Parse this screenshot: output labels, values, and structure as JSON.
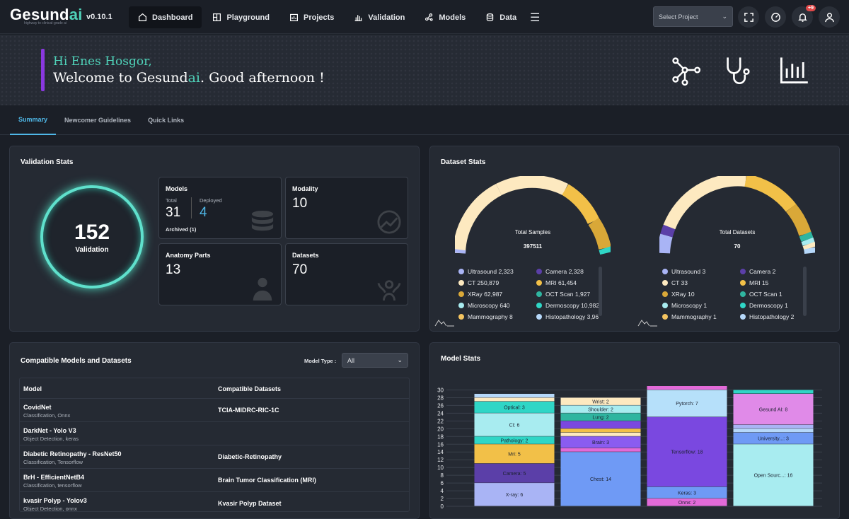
{
  "header": {
    "logo_main": "Gesund",
    "logo_ai": "ai",
    "tagline": "highway to clinical-grade ai",
    "version": "v0.10.1",
    "nav": [
      {
        "label": "Dashboard"
      },
      {
        "label": "Playground"
      },
      {
        "label": "Projects"
      },
      {
        "label": "Validation"
      },
      {
        "label": "Models"
      },
      {
        "label": "Data"
      }
    ],
    "select_project": "Select Project",
    "notifications": "+9"
  },
  "hero": {
    "greeting": "Hi Enes Hosgor,",
    "welcome_pre": "Welcome to ",
    "welcome_logo_main": "Gesund",
    "welcome_logo_ai": "ai",
    "welcome_post": ". Good afternoon !"
  },
  "tabs": [
    {
      "label": "Summary"
    },
    {
      "label": "Newcomer Guidelines"
    },
    {
      "label": "Quick Links"
    }
  ],
  "validation_stats": {
    "title": "Validation Stats",
    "count": "152",
    "count_label": "Validation",
    "models": {
      "title": "Models",
      "total_label": "Total",
      "total": "31",
      "deployed_label": "Deployed",
      "deployed": "4",
      "archived": "Archived (1)"
    },
    "modality": {
      "title": "Modality",
      "value": "10"
    },
    "anatomy": {
      "title": "Anatomy Parts",
      "value": "13"
    },
    "datasets": {
      "title": "Datasets",
      "value": "70"
    }
  },
  "dataset_stats": {
    "title": "Dataset Stats",
    "samples": {
      "label": "Total Samples",
      "value": "397511",
      "items": [
        {
          "text": "Ultrasound 2,323",
          "color": "#a9b4f5"
        },
        {
          "text": "Camera 2,328",
          "color": "#5b3fa8"
        },
        {
          "text": "CT 250,879",
          "color": "#fde9c0"
        },
        {
          "text": "MRI 61,454",
          "color": "#f2c048"
        },
        {
          "text": "XRay 62,987",
          "color": "#d9a838"
        },
        {
          "text": "OCT Scan 1,927",
          "color": "#2fb5a0"
        },
        {
          "text": "Microscopy 640",
          "color": "#a8ecf0"
        },
        {
          "text": "Dermoscopy 10,982",
          "color": "#2fd6c6"
        },
        {
          "text": "Mammography 8",
          "color": "#f4c460"
        },
        {
          "text": "Histopathology 3,96",
          "color": "#b6d8fa"
        }
      ]
    },
    "datasets": {
      "label": "Total Datasets",
      "value": "70",
      "items": [
        {
          "text": "Ultrasound 3",
          "color": "#a9b4f5"
        },
        {
          "text": "Camera 2",
          "color": "#5b3fa8"
        },
        {
          "text": "CT 33",
          "color": "#fde9c0"
        },
        {
          "text": "MRI 15",
          "color": "#f2c048"
        },
        {
          "text": "XRay 10",
          "color": "#d9a838"
        },
        {
          "text": "OCT Scan 1",
          "color": "#2fb5a0"
        },
        {
          "text": "Microscopy 1",
          "color": "#a8ecf0"
        },
        {
          "text": "Dermoscopy 1",
          "color": "#2fd6c6"
        },
        {
          "text": "Mammography 1",
          "color": "#f4c460"
        },
        {
          "text": "Histopathology 2",
          "color": "#b6d8fa"
        }
      ]
    }
  },
  "compatible": {
    "title": "Compatible Models and Datasets",
    "model_type_label": "Model Type :",
    "model_type_value": "All",
    "col_model": "Model",
    "col_datasets": "Compatible Datasets",
    "rows": [
      {
        "name": "CovidNet",
        "sub": "Classification, Onnx",
        "dataset": "TCIA-MIDRC-RIC-1C"
      },
      {
        "name": "DarkNet - Yolo V3",
        "sub": "Object Detection, keras",
        "dataset": ""
      },
      {
        "name": "Diabetic Retinopathy - ResNet50",
        "sub": "Classification, Tensorflow",
        "dataset": "Diabetic-Retinopathy"
      },
      {
        "name": "BrH - EfficientNetB4",
        "sub": "Classification, tensorflow",
        "dataset": "Brain Tumor Classification (MRI)"
      },
      {
        "name": "kvasir Polyp - Yolov3",
        "sub": "Object Detection, onnx",
        "dataset": "Kvasir Polyp Dataset"
      }
    ]
  },
  "model_stats": {
    "title": "Model Stats"
  },
  "chart_data": {
    "type": "bar",
    "stacked": true,
    "yticks": [
      "0",
      "2",
      "4",
      "6",
      "8",
      "10",
      "12",
      "14",
      "16",
      "18",
      "20",
      "22",
      "24",
      "26",
      "28",
      "30"
    ],
    "ylim": [
      0,
      31
    ],
    "stacks": [
      {
        "segments": [
          {
            "value": 6,
            "label": "X-ray: 6",
            "color": "#a9b4f5"
          },
          {
            "value": 5,
            "label": "Camera: 5",
            "color": "#5b3fa8"
          },
          {
            "value": 5,
            "label": "Mri: 5",
            "color": "#f2c048"
          },
          {
            "value": 2,
            "label": "Pathology: 2",
            "color": "#2fd6c6"
          },
          {
            "value": 6,
            "label": "Ct: 6",
            "color": "#a8ecf0"
          },
          {
            "value": 3,
            "label": "Optical: 3",
            "color": "#2fd6c6"
          },
          {
            "value": 1,
            "label": "",
            "color": "#fde9c0"
          },
          {
            "value": 1,
            "label": "",
            "color": "#b6d8fa"
          }
        ]
      },
      {
        "segments": [
          {
            "value": 14,
            "label": "Chest: 14",
            "color": "#6f9af5"
          },
          {
            "value": 1,
            "label": "",
            "color": "#e26ad8"
          },
          {
            "value": 3,
            "label": "Brain: 3",
            "color": "#8a5cf0"
          },
          {
            "value": 1,
            "label": "",
            "color": "#fde9c0"
          },
          {
            "value": 1,
            "label": "",
            "color": "#f2c048"
          },
          {
            "value": 2,
            "label": "",
            "color": "#7a48e0"
          },
          {
            "value": 2,
            "label": "Lung: 2",
            "color": "#2fb5a0"
          },
          {
            "value": 2,
            "label": "Shoulder: 2",
            "color": "#a8ecf0"
          },
          {
            "value": 2,
            "label": "Wrist: 2",
            "color": "#fde9c0"
          }
        ]
      },
      {
        "segments": [
          {
            "value": 2,
            "label": "Onnx: 2",
            "color": "#e26ad8"
          },
          {
            "value": 3,
            "label": "Keras: 3",
            "color": "#6f9af5"
          },
          {
            "value": 18,
            "label": "Tensorflow: 18",
            "color": "#7a48e0"
          },
          {
            "value": 7,
            "label": "Pytorch: 7",
            "color": "#b6e0fa"
          },
          {
            "value": 1,
            "label": "",
            "color": "#e26ad8"
          }
        ]
      },
      {
        "segments": [
          {
            "value": 16,
            "label": "Open Sourc...: 16",
            "color": "#a8ecf0"
          },
          {
            "value": 3,
            "label": "University...: 3",
            "color": "#6f9af5"
          },
          {
            "value": 1,
            "label": "",
            "color": "#b6d8fa"
          },
          {
            "value": 1,
            "label": "",
            "color": "#a9b4f5"
          },
          {
            "value": 8,
            "label": "Gesund AI: 8",
            "color": "#e08ae8"
          },
          {
            "value": 1,
            "label": "",
            "color": "#2fd6c6"
          }
        ]
      }
    ]
  }
}
